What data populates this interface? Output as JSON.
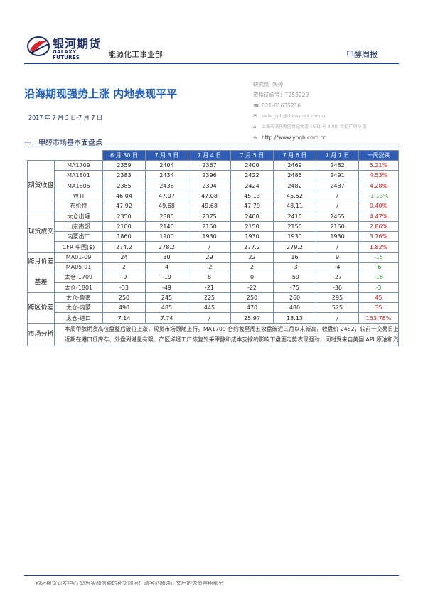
{
  "header": {
    "logo_cn": "银河期货",
    "logo_en": "GALAXY FUTURES",
    "department": "能源化工事业部",
    "report_type": "甲醇周报"
  },
  "title": "沿海期现强势上涨 内地表现平平",
  "date_range": "2017 年 7 月 3 日-7 月 7 日",
  "analyst": {
    "role": "研究员",
    "name": "陶婷",
    "cert_label": "资格证编号：",
    "cert_no": "T253229",
    "phone": "021-61635216",
    "email": "sailei_cph@chinastock.com.cn",
    "address": "上海市浦东新区世纪大道 1501 号 4000 世纪广场 9 层",
    "website": "http://www.yhqh.com.cn"
  },
  "section_title": "一、甲醇市场基本面盘点",
  "table": {
    "headers": [
      "6 月 30 日",
      "7 月 3 日",
      "7 月 4 日",
      "7 月 5 日",
      "7 月 6 日",
      "7 月 7 日",
      "一周涨跌"
    ],
    "groups": [
      {
        "label": "期货收盘",
        "rows": [
          {
            "item": "MA1709",
            "values": [
              "2359",
              "2404",
              "2367",
              "2400",
              "2469",
              "2482"
            ],
            "change": "5.21%",
            "neg": false
          },
          {
            "item": "MA1801",
            "values": [
              "2383",
              "2434",
              "2396",
              "2422",
              "2485",
              "2491"
            ],
            "change": "4.53%",
            "neg": false
          },
          {
            "item": "MA1805",
            "values": [
              "2385",
              "2438",
              "2394",
              "2424",
              "2482",
              "2487"
            ],
            "change": "4.28%",
            "neg": false
          },
          {
            "item": "WTI",
            "values": [
              "46.04",
              "47.07",
              "47.08",
              "45.13",
              "45.52",
              "/"
            ],
            "change": "-1.13%",
            "neg": true
          },
          {
            "item": "布伦特",
            "values": [
              "47.92",
              "49.68",
              "49.68",
              "47.79",
              "48.11",
              "/"
            ],
            "change": "0.40%",
            "neg": false
          }
        ]
      },
      {
        "label": "现货成交",
        "rows": [
          {
            "item": "太仓出罐",
            "values": [
              "2350",
              "2385",
              "2375",
              "2400",
              "2410",
              "2455"
            ],
            "change": "4.47%",
            "neg": false
          },
          {
            "item": "山东南部",
            "values": [
              "2100",
              "2140",
              "2150",
              "2150",
              "2150",
              "2160"
            ],
            "change": "2.86%",
            "neg": false
          },
          {
            "item": "内蒙出厂",
            "values": [
              "1860",
              "1900",
              "1930",
              "1930",
              "1930",
              "1930"
            ],
            "change": "3.76%",
            "neg": false
          },
          {
            "item": "CFR 中国($)",
            "values": [
              "274.2",
              "278.2",
              "/",
              "277.2",
              "279.2",
              "/"
            ],
            "change": "1.82%",
            "neg": false
          }
        ]
      },
      {
        "label": "跨月价差",
        "rows": [
          {
            "item": "MA01-09",
            "values": [
              "24",
              "30",
              "29",
              "22",
              "16",
              "9"
            ],
            "change": "-15",
            "neg": true
          },
          {
            "item": "MA05-01",
            "values": [
              "2",
              "4",
              "-2",
              "2",
              "-3",
              "-4"
            ],
            "change": "-6",
            "neg": true
          }
        ]
      },
      {
        "label": "基差",
        "rows": [
          {
            "item": "太仓-1709",
            "values": [
              "-9",
              "-19",
              "8",
              "0",
              "-59",
              "-27"
            ],
            "change": "-18",
            "neg": true
          },
          {
            "item": "太仓-1801",
            "values": [
              "-33",
              "-49",
              "-21",
              "-22",
              "-75",
              "-36"
            ],
            "change": "-3",
            "neg": true
          }
        ]
      },
      {
        "label": "跨区价差",
        "rows": [
          {
            "item": "太仓-鲁南",
            "values": [
              "250",
              "245",
              "225",
              "250",
              "260",
              "295"
            ],
            "change": "45",
            "neg": false
          },
          {
            "item": "太仓-内蒙",
            "values": [
              "490",
              "485",
              "445",
              "470",
              "480",
              "525"
            ],
            "change": "35",
            "neg": false
          },
          {
            "item": "太仓-进口",
            "values": [
              "7.14",
              "7.74",
              "/",
              "25.97",
              "18.13",
              "/"
            ],
            "change": "153.78%",
            "neg": false
          }
        ]
      }
    ],
    "analysis_label": "市场分析",
    "analysis_paragraphs": [
      "本周甲醇期货高位盘整后破位上涨，现货市场跟随上行。MA1709 合约截至周五收盘破近三月以来新高，收盘价 2482，较前一交易日上涨 0.53%，较上周五收盘价上涨 5.21%。周初内地本周协会指导价格上调 40 元/吨，西北地区中煤蒙大和神华宁煤开始恢复外采甲醇带动内地甲醇需求，但近期受山东市场环保压力影响，下游接货意向减弱，鲁南地区价格窄幅上涨，受制于省外货源的货增加价格推涨乏力，成交气氛偏持；沿海地区本周受盘面带动下游货积极推涨，但整体成交放量有限。外盘市场方面，外盘方面，部分 7 月份到港的进口甲醇船货报盘在 285-290 美元/吨，7 月份以及 8 月份到港的非伊朗船货报盘在+2%-2.5%，少数 8 月份到港的伊朗船货报盘在 1.5%。",
      "近期在港口低库存、外盘到港量有限、产区烯烃工厂恢复外采甲醇和成本支撑的影响下盘面走势表现强劲，同时受来自美国 API 原油和汽油库存大降以及动力煤市场上涨驱动环境改善，但是下游成交放量不足使现货价格受到压制。MTO 利润回落施压盘面，港口库存虽低位但库存边际量仍在回升，甲醇中期基本面压力仍存，MTO 利润扩大值得关注。（仅供参考）"
    ]
  },
  "footer": "银河期货研发中心 您忠实和信赖的期货顾问！请务必阅读正文后的免责声明部分"
}
